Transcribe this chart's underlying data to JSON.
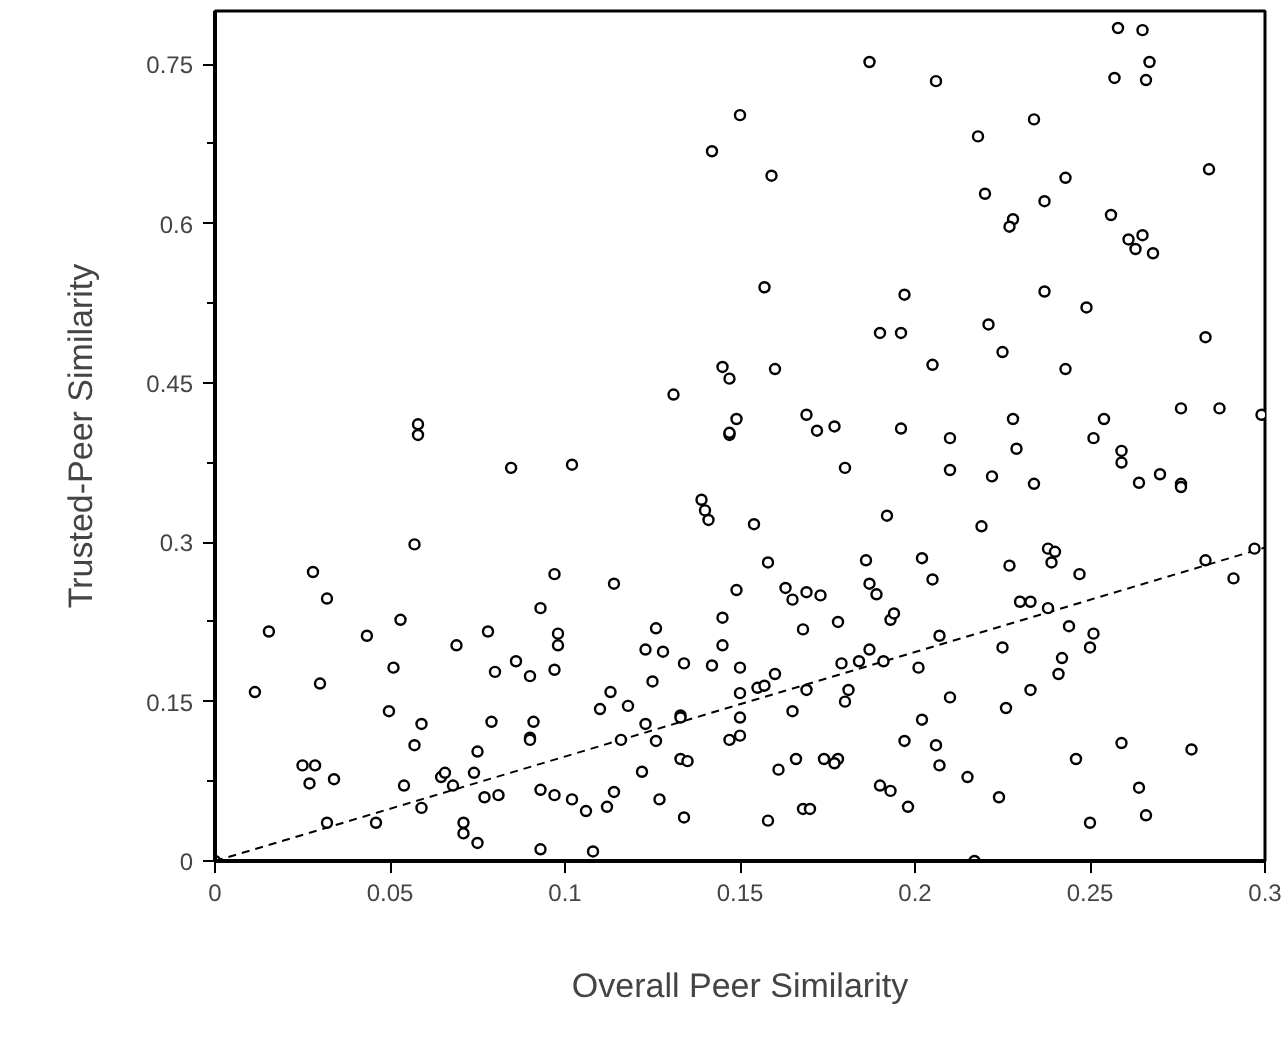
{
  "chart_data": {
    "type": "scatter",
    "xlabel": "Overall Peer Similarity",
    "ylabel": "Trusted-Peer Similarity",
    "xlim": [
      0,
      0.3
    ],
    "ylim": [
      0,
      0.8
    ],
    "xticks": [
      0,
      0.05,
      0.1,
      0.15,
      0.2,
      0.25,
      0.3
    ],
    "yticks": [
      0,
      0.15,
      0.3,
      0.45,
      0.6,
      0.75
    ],
    "series": [
      {
        "marker": "circle",
        "color": "#000000",
        "x": [
          0,
          0.0114,
          0.0154,
          0.028,
          0.032,
          0.03,
          0.025,
          0.0286,
          0.027,
          0.034,
          0.032,
          0.046,
          0.0434,
          0.053,
          0.051,
          0.0497,
          0.057,
          0.054,
          0.059,
          0.057,
          0.058,
          0.058,
          0.0846,
          0.059,
          0.0646,
          0.0657,
          0.068,
          0.069,
          0.071,
          0.071,
          0.075,
          0.074,
          0.075,
          0.077,
          0.078,
          0.079,
          0.08,
          0.081,
          0.086,
          0.09,
          0.09,
          0.09,
          0.091,
          0.093,
          0.093,
          0.093,
          0.097,
          0.098,
          0.098,
          0.097,
          0.097,
          0.102,
          0.114,
          0.11,
          0.113,
          0.118,
          0.123,
          0.116,
          0.122,
          0.102,
          0.106,
          0.112,
          0.114,
          0.108,
          0.126,
          0.123,
          0.128,
          0.125,
          0.126,
          0.127,
          0.134,
          0.133,
          0.133,
          0.133,
          0.135,
          0.134,
          0.139,
          0.14,
          0.141,
          0.142,
          0.145,
          0.145,
          0.147,
          0.149,
          0.15,
          0.15,
          0.15,
          0.15,
          0.147,
          0.154,
          0.155,
          0.157,
          0.16,
          0.158,
          0.158,
          0.161,
          0.163,
          0.165,
          0.169,
          0.168,
          0.165,
          0.166,
          0.169,
          0.168,
          0.17,
          0.173,
          0.174,
          0.178,
          0.177,
          0.178,
          0.18,
          0.179,
          0.181,
          0.18,
          0.186,
          0.187,
          0.189,
          0.187,
          0.184,
          0.191,
          0.192,
          0.193,
          0.194,
          0.19,
          0.193,
          0.197,
          0.198,
          0.187,
          0.15,
          0.142,
          0.159,
          0.157,
          0.197,
          0.19,
          0.196,
          0.145,
          0.147,
          0.16,
          0.131,
          0.149,
          0.147,
          0.169,
          0.172,
          0.177,
          0.196,
          0.258,
          0.265,
          0.267,
          0.257,
          0.266,
          0.206,
          0.234,
          0.218,
          0.284,
          0.243,
          0.22,
          0.237,
          0.256,
          0.228,
          0.227,
          0.261,
          0.265,
          0.263,
          0.268,
          0.237,
          0.249,
          0.221,
          0.225,
          0.283,
          0.205,
          0.243,
          0.276,
          0.287,
          0.299,
          0.228,
          0.254,
          0.21,
          0.251,
          0.229,
          0.259,
          0.259,
          0.21,
          0.222,
          0.234,
          0.264,
          0.27,
          0.276,
          0.276,
          0.219,
          0.202,
          0.205,
          0.238,
          0.24,
          0.239,
          0.227,
          0.247,
          0.283,
          0.297,
          0.291,
          0.23,
          0.233,
          0.238,
          0.207,
          0.244,
          0.251,
          0.225,
          0.25,
          0.242,
          0.201,
          0.241,
          0.233,
          0.21,
          0.226,
          0.202,
          0.206,
          0.207,
          0.215,
          0.224,
          0.246,
          0.259,
          0.279,
          0.264,
          0.266,
          0.25,
          0.217
        ],
        "values": [
          0,
          0.159,
          0.216,
          0.272,
          0.247,
          0.167,
          0.09,
          0.09,
          0.073,
          0.077,
          0.036,
          0.036,
          0.212,
          0.227,
          0.182,
          0.141,
          0.109,
          0.071,
          0.129,
          0.298,
          0.411,
          0.401,
          0.37,
          0.05,
          0.079,
          0.083,
          0.071,
          0.203,
          0.036,
          0.026,
          0.017,
          0.083,
          0.103,
          0.06,
          0.216,
          0.131,
          0.178,
          0.062,
          0.188,
          0.174,
          0.116,
          0.114,
          0.131,
          0.067,
          0.011,
          0.238,
          0.27,
          0.214,
          0.203,
          0.18,
          0.062,
          0.373,
          0.261,
          0.143,
          0.159,
          0.146,
          0.129,
          0.114,
          0.084,
          0.058,
          0.047,
          0.051,
          0.065,
          0.009,
          0.219,
          0.199,
          0.197,
          0.169,
          0.113,
          0.058,
          0.186,
          0.137,
          0.135,
          0.096,
          0.094,
          0.041,
          0.34,
          0.33,
          0.321,
          0.184,
          0.229,
          0.203,
          0.401,
          0.255,
          0.182,
          0.158,
          0.135,
          0.118,
          0.114,
          0.317,
          0.163,
          0.165,
          0.176,
          0.038,
          0.281,
          0.086,
          0.257,
          0.246,
          0.253,
          0.218,
          0.141,
          0.096,
          0.161,
          0.049,
          0.049,
          0.25,
          0.096,
          0.096,
          0.092,
          0.225,
          0.37,
          0.186,
          0.161,
          0.15,
          0.283,
          0.261,
          0.251,
          0.199,
          0.188,
          0.188,
          0.325,
          0.227,
          0.233,
          0.071,
          0.066,
          0.113,
          0.051,
          0.752,
          0.702,
          0.668,
          0.645,
          0.54,
          0.533,
          0.497,
          0.497,
          0.465,
          0.454,
          0.463,
          0.439,
          0.416,
          0.403,
          0.42,
          0.405,
          0.409,
          0.407,
          0.784,
          0.782,
          0.752,
          0.737,
          0.735,
          0.734,
          0.698,
          0.682,
          0.651,
          0.643,
          0.628,
          0.621,
          0.608,
          0.604,
          0.597,
          0.585,
          0.589,
          0.576,
          0.572,
          0.536,
          0.521,
          0.505,
          0.479,
          0.493,
          0.467,
          0.463,
          0.426,
          0.426,
          0.42,
          0.416,
          0.416,
          0.398,
          0.398,
          0.388,
          0.386,
          0.375,
          0.368,
          0.362,
          0.355,
          0.356,
          0.364,
          0.355,
          0.352,
          0.315,
          0.285,
          0.265,
          0.294,
          0.291,
          0.281,
          0.278,
          0.27,
          0.283,
          0.294,
          0.266,
          0.244,
          0.244,
          0.238,
          0.212,
          0.221,
          0.214,
          0.201,
          0.201,
          0.191,
          0.182,
          0.176,
          0.161,
          0.154,
          0.144,
          0.133,
          0.109,
          0.09,
          0.079,
          0.06,
          0.096,
          0.111,
          0.105,
          0.069,
          0.043,
          0.036,
          0.0
        ]
      },
      {
        "type": "line",
        "color": "#000000",
        "line_style": "dashed",
        "x": [
          0,
          0.3
        ],
        "values": [
          0,
          0.295
        ]
      }
    ]
  }
}
